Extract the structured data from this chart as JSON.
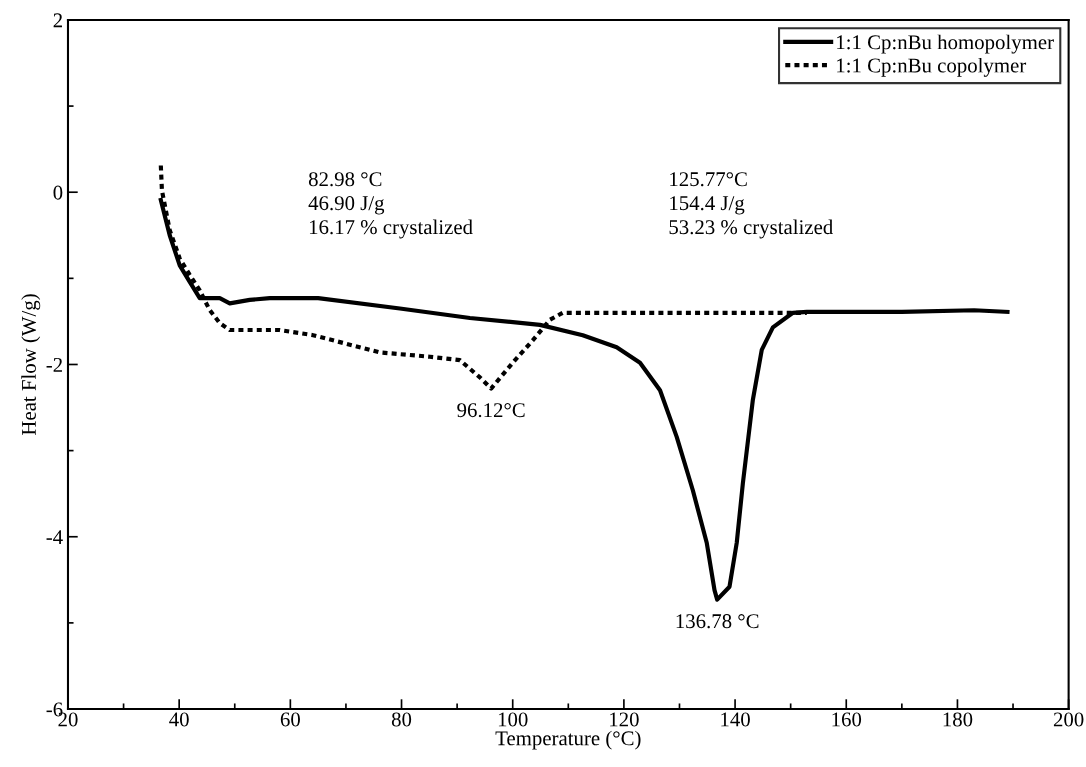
{
  "chart_data": {
    "type": "line",
    "xlabel": "Temperature (°C)",
    "ylabel": "Heat Flow (W/g)",
    "xlim": [
      20,
      200
    ],
    "xticks": [
      20,
      40,
      60,
      80,
      100,
      120,
      140,
      160,
      180,
      200
    ],
    "ylim": [
      -6,
      2
    ],
    "yticks": [
      -6,
      -4,
      -2,
      0,
      2
    ],
    "grid": false,
    "legend": "top right",
    "marker": "none",
    "series": [
      {
        "name": "1:1 Cp:nBu homopolymer",
        "color": "#000000",
        "line_style": "solid",
        "x": [
          36.7,
          38.3,
          40.1,
          41.9,
          43.7,
          47.3,
          49.1,
          52.7,
          56.3,
          65,
          79.7,
          92.3,
          104.9,
          112.6,
          118.7,
          122.9,
          126.5,
          129.5,
          132.4,
          134.9,
          136.3,
          136.78,
          139.0,
          140.3,
          141.4,
          143.2,
          144.8,
          146.8,
          150.4,
          152.9,
          170,
          183,
          189
        ],
        "values": [
          -0.09,
          -0.5,
          -0.85,
          -1.04,
          -1.23,
          -1.23,
          -1.29,
          -1.25,
          -1.23,
          -1.23,
          -1.35,
          -1.46,
          -1.54,
          -1.66,
          -1.8,
          -1.98,
          -2.3,
          -2.84,
          -3.46,
          -4.07,
          -4.62,
          -4.73,
          -4.58,
          -4.07,
          -3.38,
          -2.41,
          -1.83,
          -1.57,
          -1.4,
          -1.39,
          -1.39,
          -1.37,
          -1.39
        ]
      },
      {
        "name": "1:1 Cp:nBu copolymer",
        "color": "#000000",
        "line_style": "dotted",
        "x": [
          36.7,
          36.9,
          38.3,
          40.1,
          41.9,
          43.7,
          45.5,
          47.3,
          49.1,
          58.1,
          64.1,
          76.1,
          85.1,
          90.5,
          94.1,
          96.12,
          100.0,
          103.6,
          106.7,
          109.0,
          115.7,
          152.9
        ],
        "values": [
          0.31,
          0.02,
          -0.44,
          -0.77,
          -0.96,
          -1.14,
          -1.37,
          -1.52,
          -1.6,
          -1.6,
          -1.66,
          -1.86,
          -1.91,
          -1.95,
          -2.15,
          -2.28,
          -1.98,
          -1.72,
          -1.48,
          -1.4,
          -1.4,
          -1.4
        ]
      }
    ],
    "annotations": [
      "82.98 °C\n46.90 J/g\n16.17 % crystalized",
      "125.77°C\n154.4 J/g\n53.23 % crystalized",
      {
        "text": "96.12°C",
        "x": 96.12,
        "y": -2.28
      },
      {
        "text": "136.78 °C",
        "x": 136.78,
        "y": -4.73
      }
    ]
  }
}
